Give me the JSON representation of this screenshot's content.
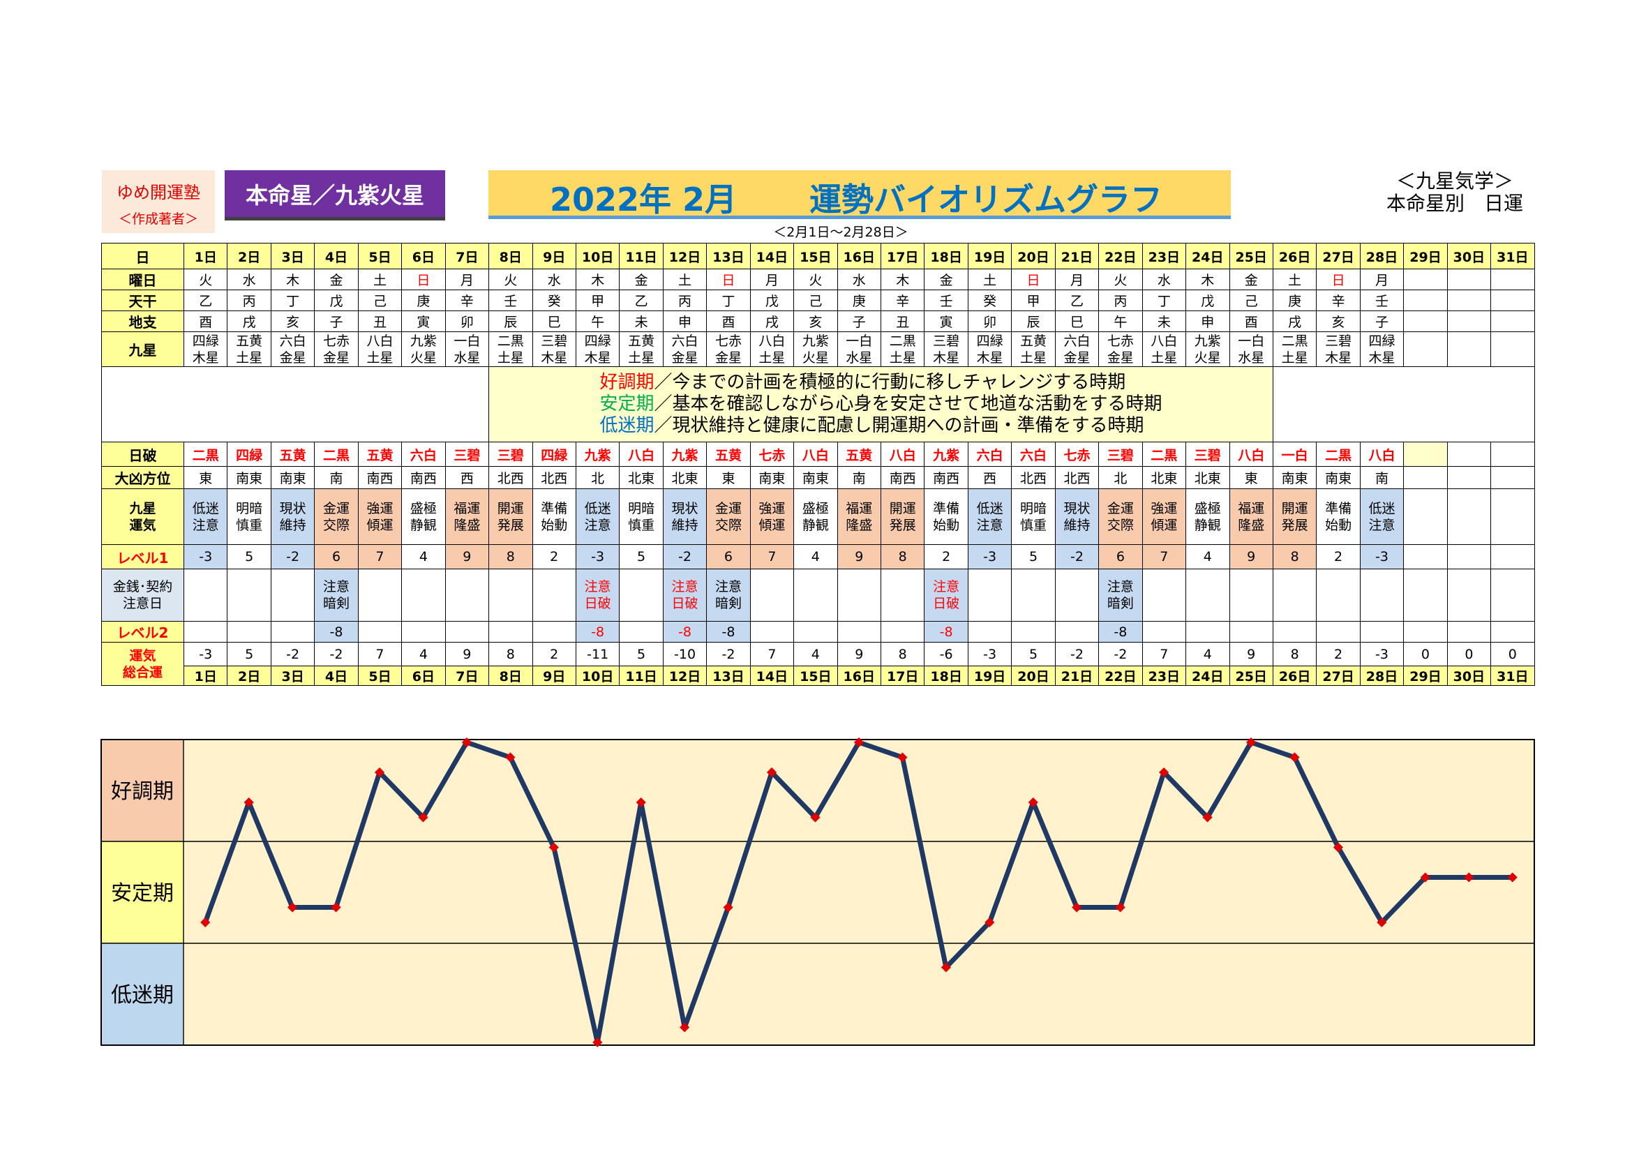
{
  "header": {
    "author_name": "ゆめ開運塾",
    "author_role": "＜作成著者＞",
    "honmei": "本命星／九紫火星",
    "year_month": "2022年 2月",
    "title": "運勢バイオリズムグラフ",
    "period": "＜2月1日～2月28日＞",
    "system_line1": "＜九星気学＞",
    "system_line2": "本命星別　日運"
  },
  "labels": {
    "day": "日",
    "weekday": "曜日",
    "tenkan": "天干",
    "chishi": "地支",
    "kyusei": "九星",
    "nippa": "日破",
    "daikyo": "大凶方位",
    "kyusei_unki_1": "九星",
    "kyusei_unki_2": "運気",
    "level1": "レベル1",
    "money_1": "金銭･契約",
    "money_2": "注意日",
    "level2": "レベル2",
    "total_1": "運気",
    "total_2": "総合運"
  },
  "legend": {
    "good_term": "好調期",
    "good_text": "／今までの計画を積極的に行動に移しチャレンジする時期",
    "stable_term": "安定期",
    "stable_text": "／基本を確認しながら心身を安定させて地道な活動をする時期",
    "low_term": "低迷期",
    "low_text": "／現状維持と健康に配慮し開運期への計画・準備をする時期"
  },
  "days": [
    "1日",
    "2日",
    "3日",
    "4日",
    "5日",
    "6日",
    "7日",
    "8日",
    "9日",
    "10日",
    "11日",
    "12日",
    "13日",
    "14日",
    "15日",
    "16日",
    "17日",
    "18日",
    "19日",
    "20日",
    "21日",
    "22日",
    "23日",
    "24日",
    "25日",
    "26日",
    "27日",
    "28日",
    "29日",
    "30日",
    "31日"
  ],
  "weekday": [
    "火",
    "水",
    "木",
    "金",
    "土",
    "日",
    "月",
    "火",
    "水",
    "木",
    "金",
    "土",
    "日",
    "月",
    "火",
    "水",
    "木",
    "金",
    "土",
    "日",
    "月",
    "火",
    "水",
    "木",
    "金",
    "土",
    "日",
    "月"
  ],
  "tenkan": [
    "乙",
    "丙",
    "丁",
    "戊",
    "己",
    "庚",
    "辛",
    "壬",
    "癸",
    "甲",
    "乙",
    "丙",
    "丁",
    "戊",
    "己",
    "庚",
    "辛",
    "壬",
    "癸",
    "甲",
    "乙",
    "丙",
    "丁",
    "戊",
    "己",
    "庚",
    "辛",
    "壬"
  ],
  "chishi": [
    "酉",
    "戌",
    "亥",
    "子",
    "丑",
    "寅",
    "卯",
    "辰",
    "巳",
    "午",
    "未",
    "申",
    "酉",
    "戌",
    "亥",
    "子",
    "丑",
    "寅",
    "卯",
    "辰",
    "巳",
    "午",
    "未",
    "申",
    "酉",
    "戌",
    "亥",
    "子"
  ],
  "kyusei": [
    [
      "四緑",
      "木星"
    ],
    [
      "五黄",
      "土星"
    ],
    [
      "六白",
      "金星"
    ],
    [
      "七赤",
      "金星"
    ],
    [
      "八白",
      "土星"
    ],
    [
      "九紫",
      "火星"
    ],
    [
      "一白",
      "水星"
    ],
    [
      "二黒",
      "土星"
    ],
    [
      "三碧",
      "木星"
    ],
    [
      "四緑",
      "木星"
    ],
    [
      "五黄",
      "土星"
    ],
    [
      "六白",
      "金星"
    ],
    [
      "七赤",
      "金星"
    ],
    [
      "八白",
      "土星"
    ],
    [
      "九紫",
      "火星"
    ],
    [
      "一白",
      "水星"
    ],
    [
      "二黒",
      "土星"
    ],
    [
      "三碧",
      "木星"
    ],
    [
      "四緑",
      "木星"
    ],
    [
      "五黄",
      "土星"
    ],
    [
      "六白",
      "金星"
    ],
    [
      "七赤",
      "金星"
    ],
    [
      "八白",
      "土星"
    ],
    [
      "九紫",
      "火星"
    ],
    [
      "一白",
      "水星"
    ],
    [
      "二黒",
      "土星"
    ],
    [
      "三碧",
      "木星"
    ],
    [
      "四緑",
      "木星"
    ]
  ],
  "nippa": [
    "二黒",
    "四緑",
    "五黄",
    "二黒",
    "五黄",
    "六白",
    "三碧",
    "三碧",
    "四緑",
    "九紫",
    "八白",
    "九紫",
    "五黄",
    "七赤",
    "八白",
    "五黄",
    "八白",
    "九紫",
    "六白",
    "六白",
    "七赤",
    "三碧",
    "二黒",
    "三碧",
    "八白",
    "一白",
    "二黒",
    "八白"
  ],
  "daikyo": [
    "東",
    "南東",
    "南東",
    "南",
    "南西",
    "南西",
    "西",
    "北西",
    "北西",
    "北",
    "北東",
    "北東",
    "東",
    "南東",
    "南東",
    "南",
    "南西",
    "南西",
    "西",
    "北西",
    "北西",
    "北",
    "北東",
    "北東",
    "東",
    "南東",
    "南東",
    "南"
  ],
  "unki": [
    [
      "低迷",
      "注意"
    ],
    [
      "明暗",
      "慎重"
    ],
    [
      "現状",
      "維持"
    ],
    [
      "金運",
      "交際"
    ],
    [
      "強運",
      "傾運"
    ],
    [
      "盛極",
      "静観"
    ],
    [
      "福運",
      "隆盛"
    ],
    [
      "開運",
      "発展"
    ],
    [
      "準備",
      "始動"
    ],
    [
      "低迷",
      "注意"
    ],
    [
      "明暗",
      "慎重"
    ],
    [
      "現状",
      "維持"
    ],
    [
      "金運",
      "交際"
    ],
    [
      "強運",
      "傾運"
    ],
    [
      "盛極",
      "静観"
    ],
    [
      "福運",
      "隆盛"
    ],
    [
      "開運",
      "発展"
    ],
    [
      "準備",
      "始動"
    ],
    [
      "低迷",
      "注意"
    ],
    [
      "明暗",
      "慎重"
    ],
    [
      "現状",
      "維持"
    ],
    [
      "金運",
      "交際"
    ],
    [
      "強運",
      "傾運"
    ],
    [
      "盛極",
      "静観"
    ],
    [
      "福運",
      "隆盛"
    ],
    [
      "開運",
      "発展"
    ],
    [
      "準備",
      "始動"
    ],
    [
      "低迷",
      "注意"
    ]
  ],
  "level1": [
    "-3",
    "5",
    "-2",
    "6",
    "7",
    "4",
    "9",
    "8",
    "2",
    "-3",
    "5",
    "-2",
    "6",
    "7",
    "4",
    "9",
    "8",
    "2",
    "-3",
    "5",
    "-2",
    "6",
    "7",
    "4",
    "9",
    "8",
    "2",
    "-3"
  ],
  "money": {
    "4": [
      "注意",
      "暗剣"
    ],
    "10": [
      "注意",
      "日破"
    ],
    "12": [
      "注意",
      "日破"
    ],
    "13": [
      "注意",
      "暗剣"
    ],
    "18": [
      "注意",
      "日破"
    ],
    "22": [
      "注意",
      "暗剣"
    ]
  },
  "level2": {
    "4": "-8",
    "10": "-8",
    "12": "-8",
    "13": "-8",
    "18": "-8",
    "22": "-8"
  },
  "total": [
    "-3",
    "5",
    "-2",
    "-2",
    "7",
    "4",
    "9",
    "8",
    "2",
    "-11",
    "5",
    "-10",
    "-2",
    "7",
    "4",
    "9",
    "8",
    "-6",
    "-3",
    "5",
    "-2",
    "-2",
    "7",
    "4",
    "9",
    "8",
    "2",
    "-3",
    "0",
    "0",
    "0"
  ],
  "zones": {
    "good": "好調期",
    "stable": "安定期",
    "low": "低迷期"
  },
  "colors": {
    "line": "#1f3864",
    "marker": "#e00000",
    "plot_bg": "#fff2cc",
    "good_bg": "#f8cbad",
    "stable_bg": "#ffff99",
    "low_bg": "#bdd7ee",
    "low_cell": "#c5d9f1",
    "high_cell": "#f8cbad"
  },
  "chart_data": {
    "type": "line",
    "categories": [
      "1日",
      "2日",
      "3日",
      "4日",
      "5日",
      "6日",
      "7日",
      "8日",
      "9日",
      "10日",
      "11日",
      "12日",
      "13日",
      "14日",
      "15日",
      "16日",
      "17日",
      "18日",
      "19日",
      "20日",
      "21日",
      "22日",
      "23日",
      "24日",
      "25日",
      "26日",
      "27日",
      "28日",
      "29日",
      "30日",
      "31日"
    ],
    "series": [
      {
        "values": [
          -3,
          5,
          -2,
          -2,
          7,
          4,
          9,
          8,
          2,
          -11,
          5,
          -10,
          -2,
          7,
          4,
          9,
          8,
          -6,
          -3,
          5,
          -2,
          -2,
          7,
          4,
          9,
          8,
          2,
          -3,
          0,
          0,
          0
        ]
      }
    ],
    "ylim": [
      -11,
      9
    ],
    "bands": [
      "好調期",
      "安定期",
      "低迷期"
    ],
    "grid": false,
    "legend": "none"
  }
}
